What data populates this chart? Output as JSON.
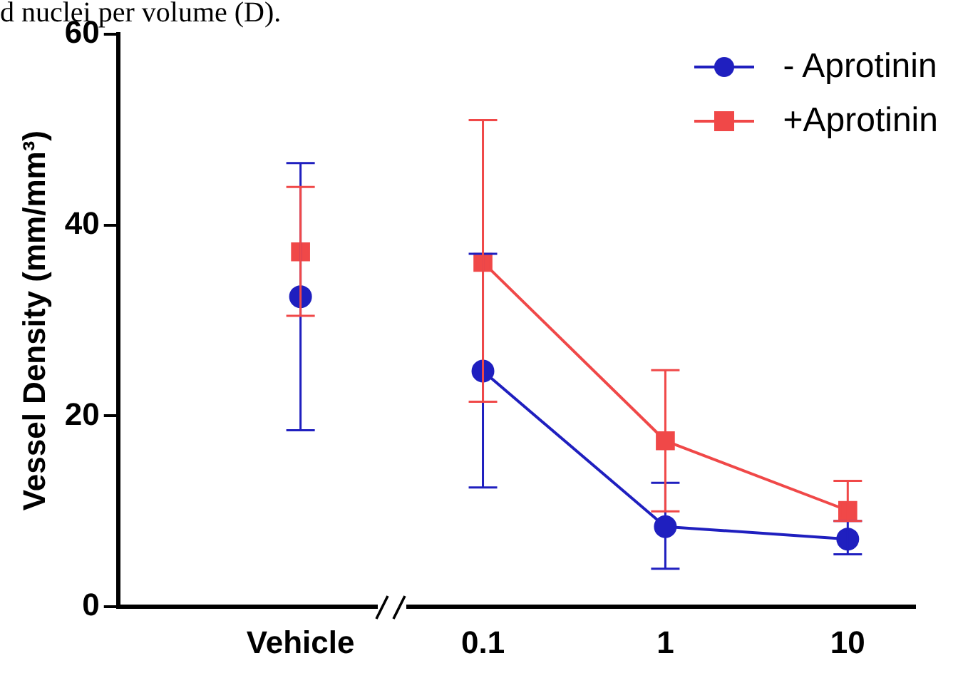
{
  "chart_data": {
    "type": "line",
    "ylabel": "Vessel Density (mm/mm³)",
    "categories": [
      "Vehicle",
      "0.1",
      "1",
      "10"
    ],
    "series": [
      {
        "name": "- Aprotinin",
        "color": "#1f1fbf",
        "marker": "circle",
        "values": [
          null,
          24.7,
          8.4,
          7.1
        ],
        "errors": [
          null,
          [
            12.5,
            37
          ],
          [
            4,
            13
          ],
          [
            5.5,
            9
          ]
        ]
      },
      {
        "name": "+Aprotinin",
        "color": "#f04848",
        "marker": "square",
        "values": [
          null,
          36.1,
          17.4,
          10.1
        ],
        "errors": [
          null,
          [
            21.5,
            51
          ],
          [
            10,
            24.8
          ],
          [
            9,
            13.2
          ]
        ]
      },
      {
        "type": "scatter",
        "color": "#1f1fbf",
        "marker": "circle",
        "values": [
          32.5,
          null,
          null,
          null
        ],
        "errors": [
          [
            18.5,
            46.5
          ],
          null,
          null,
          null
        ]
      },
      {
        "type": "scatter",
        "color": "#f04848",
        "marker": "square",
        "values": [
          37.2,
          null,
          null,
          null
        ],
        "errors": [
          [
            30.5,
            44
          ],
          null,
          null,
          null
        ]
      }
    ],
    "ylim": [
      0,
      60
    ],
    "yticks": [
      0,
      20,
      40,
      60
    ],
    "grid": false,
    "legend": "top right",
    "annotations": [
      "d nuclei per volume (D)."
    ]
  }
}
